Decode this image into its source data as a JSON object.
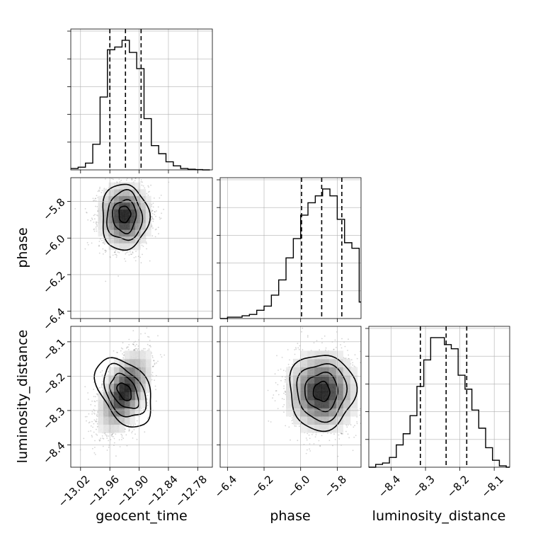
{
  "chart_data": {
    "type": "corner",
    "params": [
      {
        "name": "geocent_time",
        "label": "geocent_time",
        "range": [
          -13.04,
          -12.75
        ],
        "ticks": [
          -13.02,
          -12.96,
          -12.9,
          -12.84,
          -12.78
        ],
        "tick_labels": [
          "−13.02",
          "−12.96",
          "−12.90",
          "−12.84",
          "−12.78"
        ],
        "quantiles": [
          -12.96,
          -12.928,
          -12.896
        ],
        "hist_edges": [
          -13.04,
          -13.025,
          -13.01,
          -12.995,
          -12.98,
          -12.965,
          -12.95,
          -12.935,
          -12.92,
          -12.905,
          -12.89,
          -12.875,
          -12.86,
          -12.845,
          -12.83,
          -12.815,
          -12.8,
          -12.785,
          -12.77,
          -12.755
        ],
        "hist_counts": [
          0.01,
          0.02,
          0.05,
          0.19,
          0.54,
          0.89,
          0.91,
          0.96,
          0.87,
          0.75,
          0.38,
          0.18,
          0.12,
          0.06,
          0.03,
          0.01,
          0.005,
          0.002,
          0.0
        ]
      },
      {
        "name": "phase",
        "label": "phase",
        "range": [
          -6.44,
          -5.67
        ],
        "ticks": [
          -6.4,
          -6.2,
          -6.0,
          -5.8
        ],
        "tick_labels": [
          "−6.4",
          "−6.2",
          "−6.0",
          "−5.8"
        ],
        "quantiles": [
          -5.995,
          -5.885,
          -5.775
        ],
        "hist_edges": [
          -6.44,
          -6.4,
          -6.36,
          -6.32,
          -6.28,
          -6.24,
          -6.2,
          -6.16,
          -6.12,
          -6.08,
          -6.04,
          -6.0,
          -5.96,
          -5.92,
          -5.88,
          -5.84,
          -5.8,
          -5.76,
          -5.72,
          -5.68,
          -5.67
        ],
        "hist_counts": [
          0.0,
          0.01,
          0.01,
          0.02,
          0.03,
          0.06,
          0.09,
          0.17,
          0.28,
          0.44,
          0.58,
          0.75,
          0.84,
          0.89,
          0.94,
          0.89,
          0.72,
          0.55,
          0.51,
          0.12
        ]
      },
      {
        "name": "luminosity_distance",
        "label": "luminosity_distance",
        "range": [
          -8.465,
          -8.055
        ],
        "ticks": [
          -8.4,
          -8.3,
          -8.2,
          -8.1
        ],
        "tick_labels": [
          "−8.4",
          "−8.3",
          "−8.2",
          "−8.1"
        ],
        "quantiles": [
          -8.315,
          -8.24,
          -8.18
        ],
        "hist_edges": [
          -8.465,
          -8.445,
          -8.425,
          -8.405,
          -8.385,
          -8.365,
          -8.345,
          -8.325,
          -8.305,
          -8.285,
          -8.265,
          -8.245,
          -8.225,
          -8.205,
          -8.185,
          -8.165,
          -8.145,
          -8.125,
          -8.105,
          -8.085,
          -8.065,
          -8.055
        ],
        "hist_counts": [
          0.0,
          0.02,
          0.03,
          0.07,
          0.16,
          0.24,
          0.37,
          0.58,
          0.77,
          0.93,
          0.93,
          0.88,
          0.85,
          0.66,
          0.56,
          0.41,
          0.28,
          0.14,
          0.05,
          0.01,
          0.0
        ]
      }
    ],
    "pairs": [
      {
        "x": "geocent_time",
        "y": "phase",
        "mean": [
          -12.93,
          -5.88
        ],
        "sd": [
          0.025,
          0.085
        ],
        "rho": 0.0,
        "contours": [
          {
            "level": "0.5sigma",
            "center": [
              -12.93,
              -5.87
            ],
            "radii": [
              0.012,
              0.045
            ]
          },
          {
            "level": "1sigma",
            "center": [
              -12.93,
              -5.88
            ],
            "radii": [
              0.024,
              0.09
            ]
          },
          {
            "level": "1.5sigma",
            "center": [
              -12.93,
              -5.88
            ],
            "radii": [
              0.036,
              0.135
            ]
          },
          {
            "level": "2sigma",
            "center": [
              -12.93,
              -5.885
            ],
            "radii": [
              0.048,
              0.18
            ]
          }
        ]
      },
      {
        "x": "geocent_time",
        "y": "luminosity_distance",
        "mean": [
          -12.93,
          -8.245
        ],
        "sd": [
          0.025,
          0.055
        ],
        "rho": 0.5,
        "contours": [
          {
            "level": "0.5sigma",
            "center": [
              -12.93,
              -8.245
            ],
            "radii": [
              0.012,
              0.028
            ]
          },
          {
            "level": "1sigma",
            "center": [
              -12.93,
              -8.245
            ],
            "radii": [
              0.024,
              0.055
            ]
          },
          {
            "level": "1.5sigma",
            "center": [
              -12.93,
              -8.245
            ],
            "radii": [
              0.036,
              0.083
            ]
          },
          {
            "level": "2sigma",
            "center": [
              -12.93,
              -8.245
            ],
            "radii": [
              0.048,
              0.11
            ]
          }
        ]
      },
      {
        "x": "phase",
        "y": "luminosity_distance",
        "mean": [
          -5.885,
          -8.245
        ],
        "sd": [
          0.09,
          0.055
        ],
        "rho": 0.0,
        "contours": [
          {
            "level": "0.5sigma",
            "center": [
              -5.885,
              -8.245
            ],
            "radii": [
              0.045,
              0.028
            ]
          },
          {
            "level": "1sigma",
            "center": [
              -5.885,
              -8.245
            ],
            "radii": [
              0.09,
              0.055
            ]
          },
          {
            "level": "1.5sigma",
            "center": [
              -5.885,
              -8.245
            ],
            "radii": [
              0.135,
              0.083
            ]
          },
          {
            "level": "2sigma",
            "center": [
              -5.885,
              -8.245
            ],
            "radii": [
              0.18,
              0.11
            ]
          }
        ]
      }
    ],
    "quantile_line_style": "dashed",
    "grid": true,
    "colors": {
      "line": "#000000",
      "grid": "#b0b0b0",
      "points": "#555555",
      "density_max": "#000000",
      "density_min": "#ffffff"
    }
  }
}
